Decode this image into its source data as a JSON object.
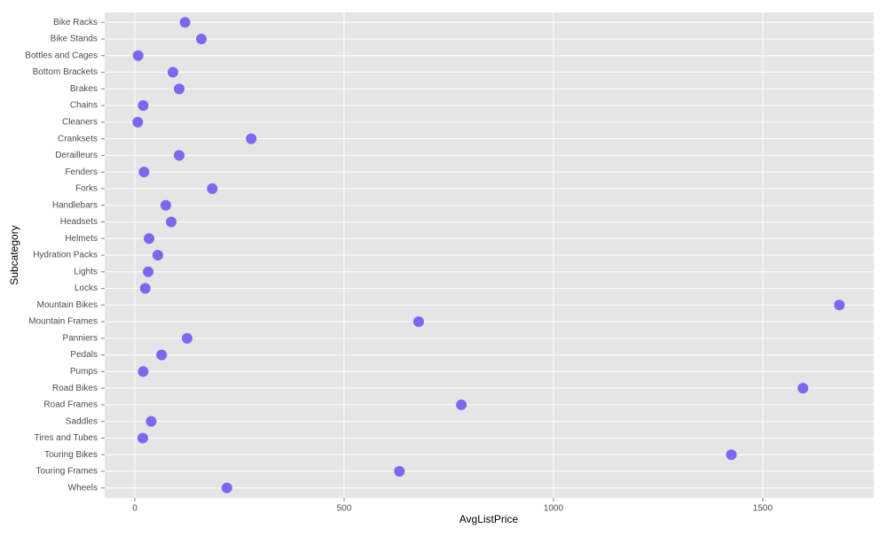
{
  "chart_data": {
    "type": "dot",
    "x_label": "AvgListPrice",
    "y_label": "Subcategory",
    "categories": [
      "Bike Racks",
      "Bike Stands",
      "Bottles and Cages",
      "Bottom Brackets",
      "Brakes",
      "Chains",
      "Cleaners",
      "Cranksets",
      "Derailleurs",
      "Fenders",
      "Forks",
      "Handlebars",
      "Headsets",
      "Helmets",
      "Hydration Packs",
      "Lights",
      "Locks",
      "Mountain Bikes",
      "Mountain Frames",
      "Panniers",
      "Pedals",
      "Pumps",
      "Road Bikes",
      "Road Frames",
      "Saddles",
      "Tires and Tubes",
      "Touring Bikes",
      "Touring Frames",
      "Wheels"
    ],
    "values": [
      120,
      159,
      8,
      91,
      106,
      20,
      7,
      278,
      106,
      22,
      185,
      74,
      87,
      34,
      55,
      32,
      25,
      1683,
      678,
      125,
      64,
      20,
      1596,
      780,
      39,
      19,
      1425,
      632,
      220
    ],
    "color": "#7b68ee",
    "xlim": [
      -72,
      1765
    ],
    "xticks": [
      0,
      500,
      1000,
      1500
    ],
    "grid": true
  }
}
